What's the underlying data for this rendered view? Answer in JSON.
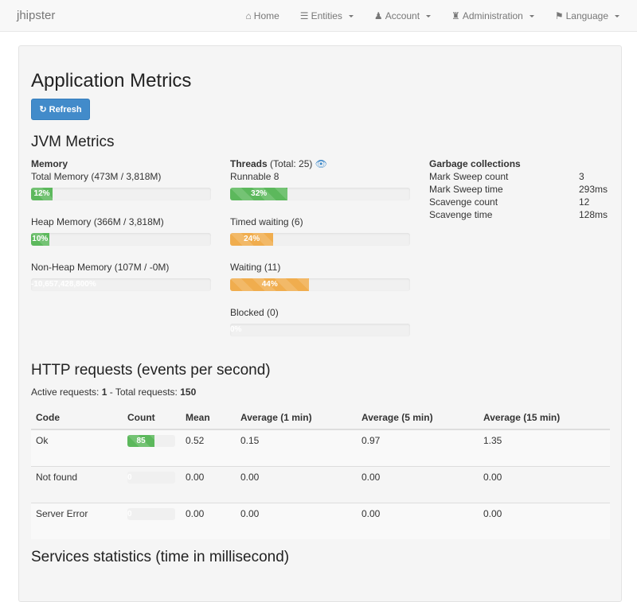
{
  "nav": {
    "brand": "jhipster",
    "items": [
      {
        "label": "Home",
        "icon": "home-icon"
      },
      {
        "label": "Entities",
        "icon": "list-icon"
      },
      {
        "label": "Account",
        "icon": "user-icon"
      },
      {
        "label": "Administration",
        "icon": "tower-icon"
      },
      {
        "label": "Language",
        "icon": "flag-icon"
      }
    ]
  },
  "page": {
    "title": "Application Metrics",
    "refresh": "Refresh",
    "jvm_title": "JVM Metrics"
  },
  "memory": {
    "title": "Memory",
    "items": [
      {
        "label": "Total Memory (473M / 3,818M)",
        "pct": 12,
        "text": "12%"
      },
      {
        "label": "Heap Memory (366M / 3,818M)",
        "pct": 10,
        "text": "10%"
      },
      {
        "label": "Non-Heap Memory (107M / -0M)",
        "pct": 0,
        "text": "-10,657,428,800%"
      }
    ]
  },
  "threads": {
    "title": "Threads",
    "total": "(Total: 25)",
    "items": [
      {
        "label": "Runnable 8",
        "pct": 32,
        "text": "32%",
        "color": "#5cb85c"
      },
      {
        "label": "Timed waiting (6)",
        "pct": 24,
        "text": "24%",
        "color": "#f0ad4e"
      },
      {
        "label": "Waiting (11)",
        "pct": 44,
        "text": "44%",
        "color": "#f0ad4e"
      },
      {
        "label": "Blocked (0)",
        "pct": 0,
        "text": "0%",
        "color": "#5cb85c"
      }
    ]
  },
  "gc": {
    "title": "Garbage collections",
    "rows": [
      [
        "Mark Sweep count",
        "3"
      ],
      [
        "Mark Sweep time",
        "293ms"
      ],
      [
        "Scavenge count",
        "12"
      ],
      [
        "Scavenge time",
        "128ms"
      ]
    ]
  },
  "http": {
    "title": "HTTP requests (events per second)",
    "active_label": "Active requests: ",
    "active": "1",
    "total_label": " - Total requests: ",
    "total": "150",
    "headers": [
      "Code",
      "Count",
      "Mean",
      "Average (1 min)",
      "Average (5 min)",
      "Average (15 min)"
    ],
    "rows": [
      {
        "code": "Ok",
        "count": "85",
        "pct": 57,
        "mean": "0.52",
        "m1": "0.15",
        "m5": "0.97",
        "m15": "1.35"
      },
      {
        "code": "Not found",
        "count": "0",
        "pct": 0,
        "mean": "0.00",
        "m1": "0.00",
        "m5": "0.00",
        "m15": "0.00"
      },
      {
        "code": "Server Error",
        "count": "0",
        "pct": 0,
        "mean": "0.00",
        "m1": "0.00",
        "m5": "0.00",
        "m15": "0.00"
      }
    ]
  },
  "services_title": "Services statistics (time in millisecond)"
}
